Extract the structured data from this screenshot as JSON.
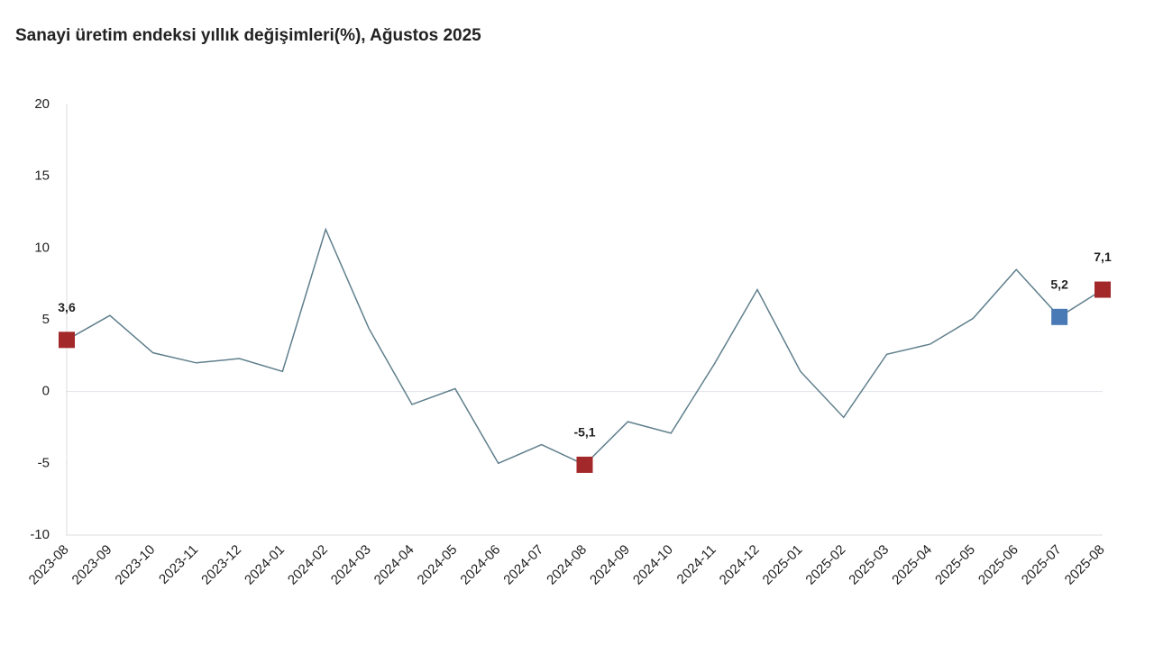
{
  "chart_data": {
    "type": "line",
    "title": "Sanayi üretim endeksi yıllık değişimleri(%), Ağustos 2025",
    "categories": [
      "2023-08",
      "2023-09",
      "2023-10",
      "2023-11",
      "2023-12",
      "2024-01",
      "2024-02",
      "2024-03",
      "2024-04",
      "2024-05",
      "2024-06",
      "2024-07",
      "2024-08",
      "2024-09",
      "2024-10",
      "2024-11",
      "2024-12",
      "2025-01",
      "2025-02",
      "2025-03",
      "2025-04",
      "2025-05",
      "2025-06",
      "2025-07",
      "2025-08"
    ],
    "values": [
      3.6,
      5.3,
      2.7,
      2.0,
      2.3,
      1.4,
      11.3,
      4.4,
      -0.9,
      0.2,
      -5.0,
      -3.7,
      -5.1,
      -2.1,
      -2.9,
      1.9,
      7.1,
      1.4,
      -1.8,
      2.6,
      3.3,
      5.1,
      8.5,
      5.2,
      7.1
    ],
    "value_labels": [
      "3,6",
      null,
      null,
      null,
      null,
      null,
      null,
      null,
      null,
      null,
      null,
      null,
      "-5,1",
      null,
      null,
      null,
      null,
      null,
      null,
      null,
      null,
      null,
      null,
      "5,2",
      "7,1"
    ],
    "marker_colors": [
      "#a3282a",
      null,
      null,
      null,
      null,
      null,
      null,
      null,
      null,
      null,
      null,
      null,
      "#a3282a",
      null,
      null,
      null,
      null,
      null,
      null,
      null,
      null,
      null,
      null,
      "#4a7ab5",
      "#a3282a"
    ],
    "color": "#5f7f8c",
    "ylim": [
      -10,
      20
    ],
    "yticks": [
      20,
      15,
      10,
      5,
      0,
      -5,
      -10
    ],
    "grid": false
  }
}
